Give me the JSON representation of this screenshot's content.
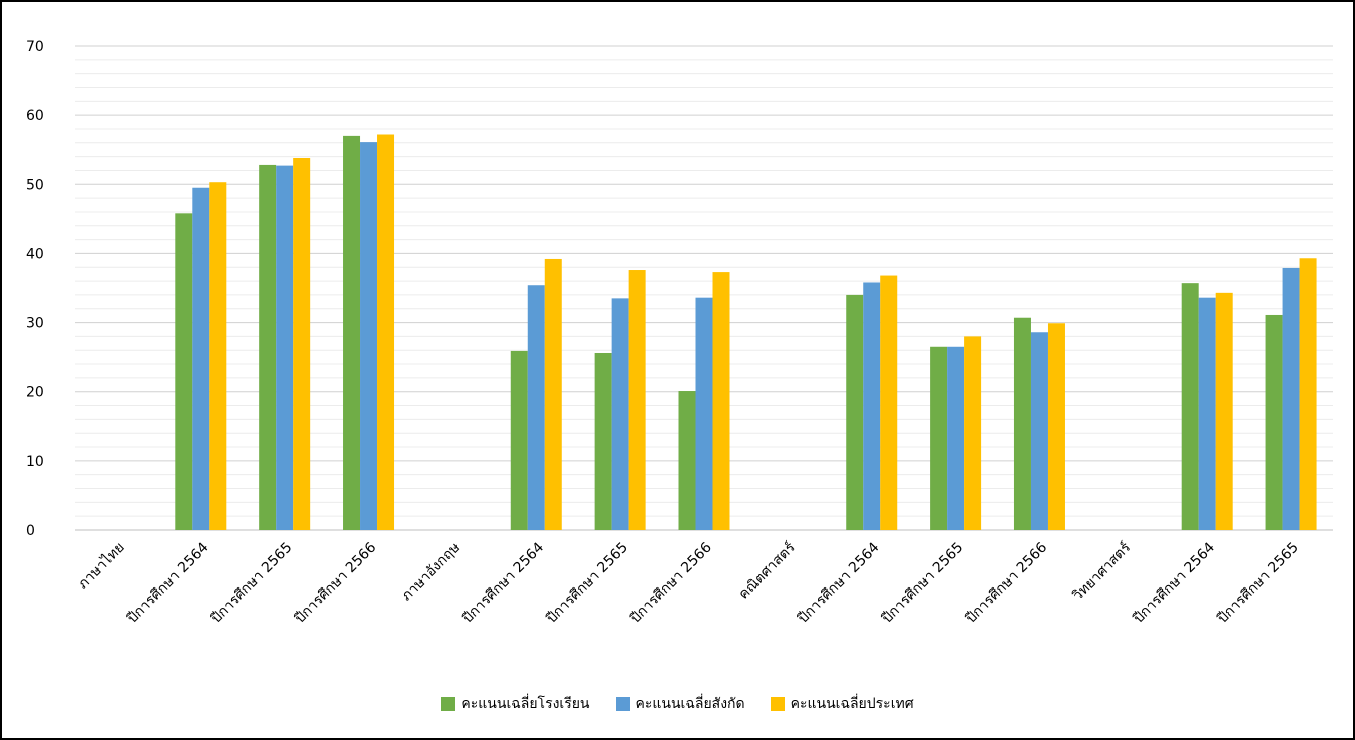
{
  "chart_data": {
    "type": "bar",
    "title": "",
    "xlabel": "",
    "ylabel": "",
    "ylim": [
      0,
      70
    ],
    "yticks": [
      "0",
      "10",
      "20",
      "30",
      "40",
      "50",
      "60",
      "70"
    ],
    "grid": true,
    "legend_position": "bottom",
    "categories": [
      "ภาษาไทย",
      "ปีการศึกษา 2564",
      "ปีการศึกษา 2565",
      "ปีการศึกษา 2566",
      "ภาษาอังกฤษ",
      "ปีการศึกษา 2564",
      "ปีการศึกษา 2565",
      "ปีการศึกษา 2566",
      "คณิตศาสตร์",
      "ปีการศึกษา 2564",
      "ปีการศึกษา 2565",
      "ปีการศึกษา 2566",
      "วิทยาศาสตร์",
      "ปีการศึกษา 2564",
      "ปีการศึกษา 2565"
    ],
    "series": [
      {
        "name": "คะแนนเฉลี่ยโรงเรียน",
        "color": "#70AD47",
        "values": [
          null,
          45.8,
          52.8,
          57.0,
          null,
          25.9,
          25.6,
          20.1,
          null,
          34.0,
          26.5,
          30.7,
          null,
          35.7,
          31.1
        ]
      },
      {
        "name": "คะแนนเฉลี่ยสังกัด",
        "color": "#5B9BD5",
        "values": [
          null,
          49.5,
          52.7,
          56.1,
          null,
          35.4,
          33.5,
          33.6,
          null,
          35.8,
          26.5,
          28.6,
          null,
          33.6,
          37.9
        ]
      },
      {
        "name": "คะแนนเฉลี่ยประเทศ",
        "color": "#FFC000",
        "values": [
          null,
          50.3,
          53.8,
          57.2,
          null,
          39.2,
          37.6,
          37.3,
          null,
          36.8,
          28.0,
          29.9,
          null,
          34.3,
          39.3
        ]
      }
    ]
  }
}
